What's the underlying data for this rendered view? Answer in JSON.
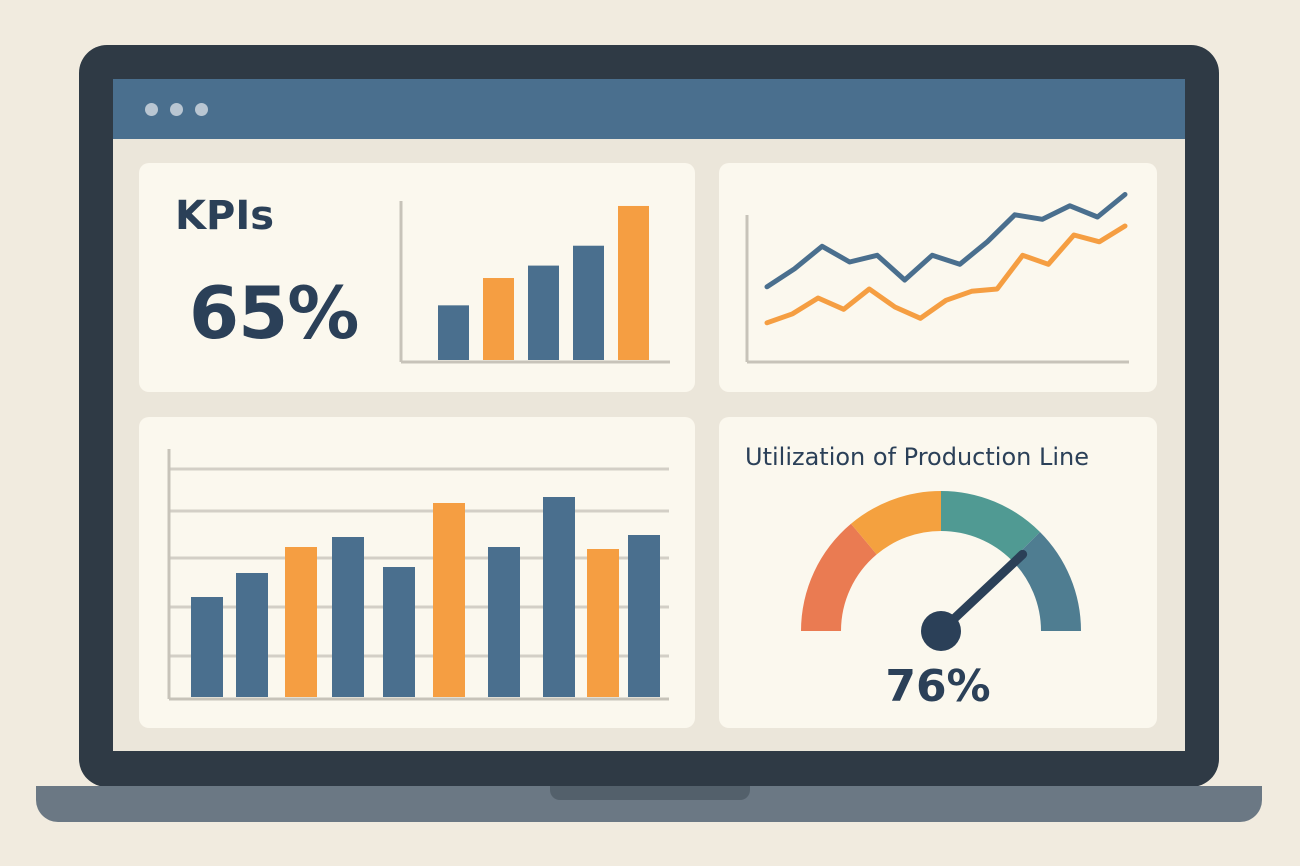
{
  "window": {
    "controls": [
      "window-dot",
      "window-dot",
      "window-dot"
    ]
  },
  "colors": {
    "blue": "#4a6f8e",
    "orange": "#f59e42",
    "gauge_red": "#ea7b52",
    "gauge_orange": "#f4a13f",
    "gauge_teal": "#509a93",
    "gauge_blue": "#4f7d91",
    "ink": "#2b4058"
  },
  "kpi_panel": {
    "title": "KPIs",
    "value": "65%"
  },
  "gauge_panel": {
    "title": "Utilization of Production Line",
    "value_label": "76%",
    "value": 76
  },
  "chart_data": [
    {
      "type": "bar",
      "values": [
        22,
        33,
        38,
        46,
        62
      ],
      "colors": [
        "#4a6f8e",
        "#f59e42",
        "#4a6f8e",
        "#4a6f8e",
        "#f59e42"
      ]
    },
    {
      "type": "line",
      "series": [
        {
          "values": [
            29,
            37,
            47,
            40,
            43,
            32,
            43,
            39,
            49,
            61,
            59,
            65,
            60,
            70
          ],
          "color": "#4a6f8e"
        },
        {
          "values": [
            13,
            17,
            24,
            19,
            28,
            20,
            15,
            23,
            27,
            28,
            43,
            39,
            52,
            49,
            56
          ],
          "color": "#f59e42"
        }
      ]
    },
    {
      "type": "bar",
      "values": [
        50,
        62,
        75,
        80,
        65,
        97,
        75,
        100,
        74,
        81
      ],
      "colors": [
        "#4a6f8e",
        "#4a6f8e",
        "#f59e42",
        "#4a6f8e",
        "#4a6f8e",
        "#f59e42",
        "#4a6f8e",
        "#4a6f8e",
        "#f59e42",
        "#4a6f8e"
      ]
    }
  ]
}
